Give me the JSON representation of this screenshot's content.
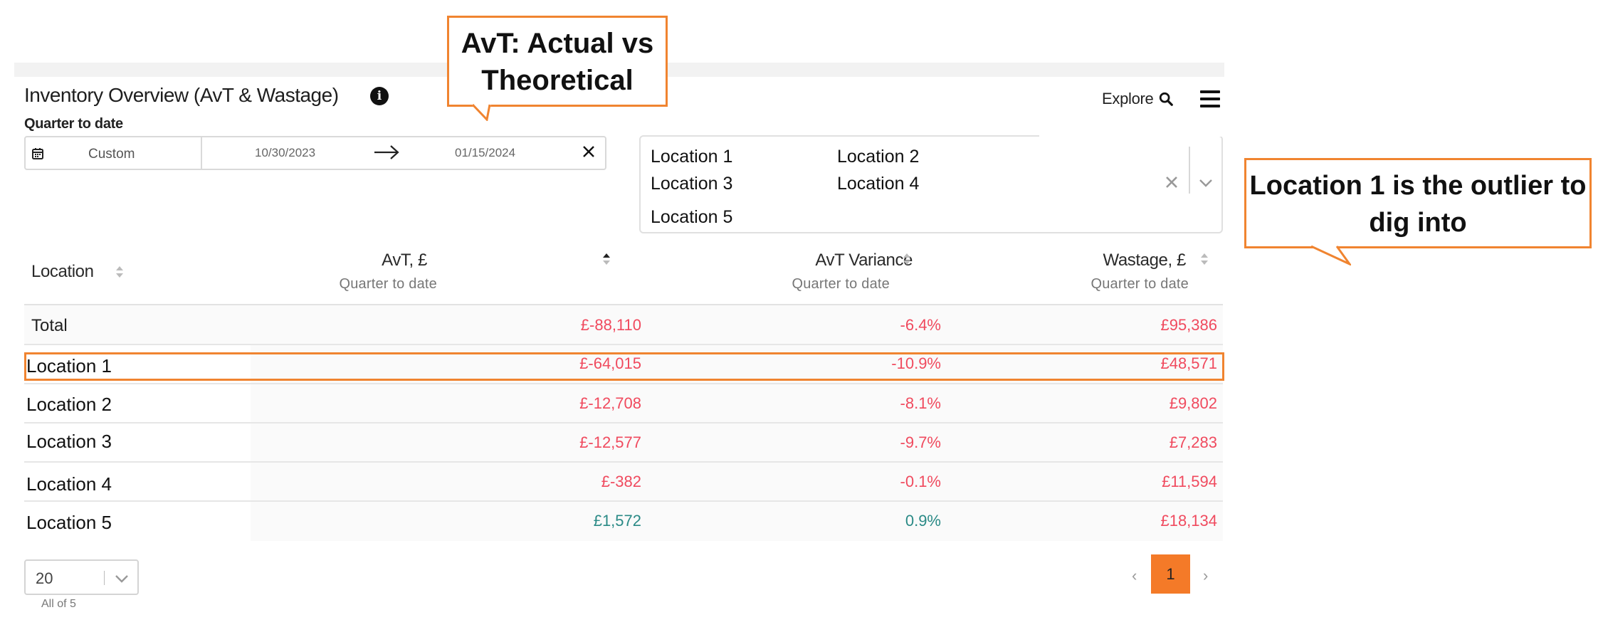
{
  "header": {
    "title": "Inventory Overview (AvT & Wastage)",
    "subtitle": "Quarter to date",
    "explore_label": "Explore"
  },
  "date_range": {
    "preset": "Custom",
    "start": "10/30/2023",
    "end": "01/15/2024"
  },
  "location_filter": {
    "selected": [
      "Location 1",
      "Location 2",
      "Location 3",
      "Location 4",
      "Location 5"
    ]
  },
  "callouts": {
    "avt": "AvT: Actual vs Theoretical",
    "outlier": "Location 1 is the outlier to dig into"
  },
  "table": {
    "columns": [
      {
        "label": "Location",
        "sub": ""
      },
      {
        "label": "AvT, £",
        "sub": "Quarter to date"
      },
      {
        "label": "AvT Variance",
        "sub": "Quarter to date"
      },
      {
        "label": "Wastage, £",
        "sub": "Quarter to date"
      }
    ],
    "total": {
      "name": "Total",
      "avt": "£-88,110",
      "variance": "-6.4%",
      "wastage": "£95,386"
    },
    "rows": [
      {
        "name": "Location 1",
        "avt": "£-64,015",
        "variance": "-10.9%",
        "wastage": "£48,571"
      },
      {
        "name": "Location 2",
        "avt": "£-12,708",
        "variance": "-8.1%",
        "wastage": "£9,802"
      },
      {
        "name": "Location 3",
        "avt": "£-12,577",
        "variance": "-9.7%",
        "wastage": "£7,283"
      },
      {
        "name": "Location 4",
        "avt": "£-382",
        "variance": "-0.1%",
        "wastage": "£11,594"
      },
      {
        "name": "Location 5",
        "avt": "£1,572",
        "variance": "0.9%",
        "wastage": "£18,134"
      }
    ]
  },
  "pagination": {
    "page_size": "20",
    "count_label": "All of 5",
    "prev": "‹",
    "current": "1",
    "next": "›"
  },
  "colors": {
    "accent": "#f47a28",
    "callout_border": "#f08430",
    "negative": "#f04a5e",
    "positive": "#2a8a86"
  }
}
